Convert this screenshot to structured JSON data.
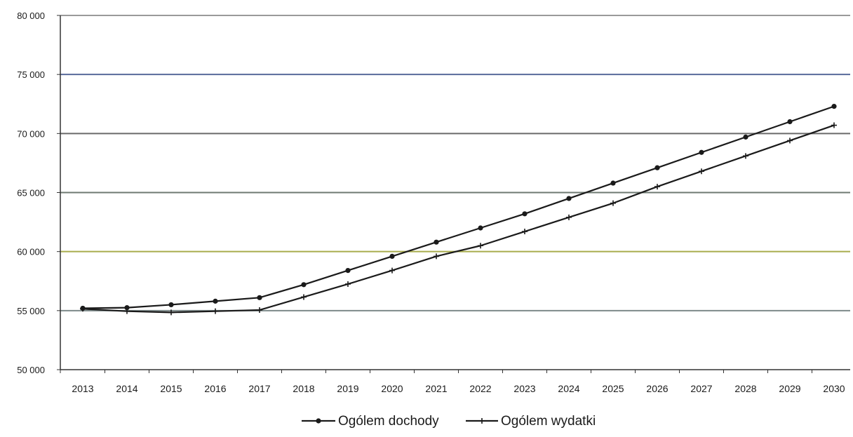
{
  "chart_data": {
    "type": "line",
    "title": "",
    "xlabel": "",
    "ylabel": "",
    "categories": [
      "2013",
      "2014",
      "2015",
      "2016",
      "2017",
      "2018",
      "2019",
      "2020",
      "2021",
      "2022",
      "2023",
      "2024",
      "2025",
      "2026",
      "2027",
      "2028",
      "2029",
      "2030"
    ],
    "ylim": [
      50000,
      80000
    ],
    "yticks": [
      50000,
      55000,
      60000,
      65000,
      70000,
      75000,
      80000
    ],
    "ytick_labels": [
      "50 000",
      "55 000",
      "60 000",
      "65 000",
      "70 000",
      "75 000",
      "80 000"
    ],
    "grid": true,
    "legend_position": "bottom-center",
    "series": [
      {
        "name": "Ogólem dochody",
        "color": "#1a1a1a",
        "marker": "dot",
        "values": [
          55200,
          55250,
          55500,
          55800,
          56100,
          57200,
          58400,
          59600,
          60800,
          62000,
          63200,
          64500,
          65800,
          67100,
          68400,
          69700,
          71000,
          72300
        ]
      },
      {
        "name": "Ogólem wydatki",
        "color": "#1a1a1a",
        "marker": "plus",
        "values": [
          55150,
          54950,
          54850,
          54950,
          55050,
          56150,
          57250,
          58400,
          59600,
          60500,
          61700,
          62900,
          64100,
          65500,
          66800,
          68100,
          69400,
          70700
        ]
      }
    ],
    "gridline_colors": {
      "50000": "#8a8a8a",
      "55000": "#7d8a8a",
      "60000": "#a8ac4c",
      "65000": "#6e7a72",
      "70000": "#6a6a6a",
      "75000": "#586a9a",
      "80000": "#9a9a9a"
    }
  }
}
